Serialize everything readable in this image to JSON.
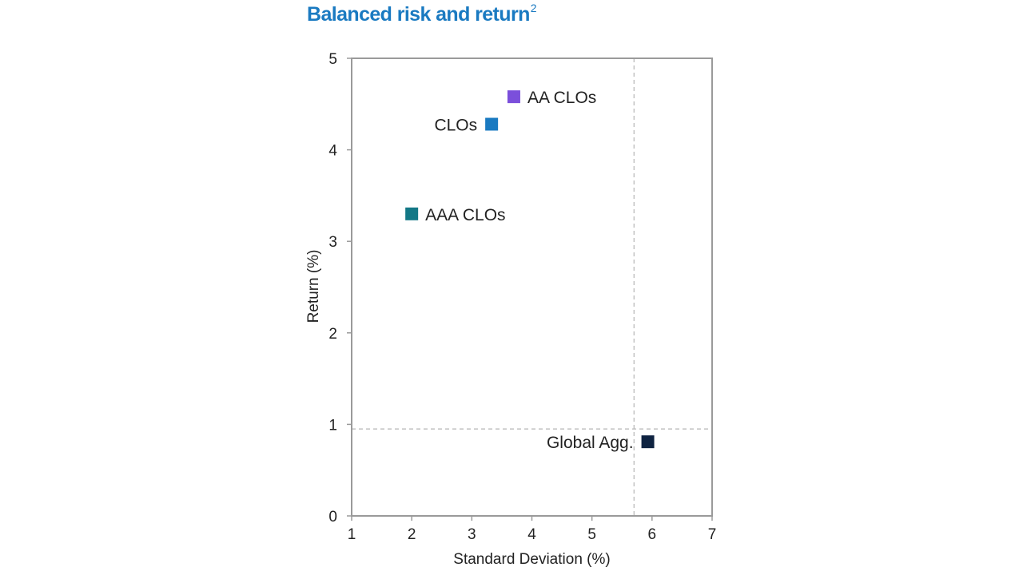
{
  "chart_data": {
    "type": "scatter",
    "title": "Balanced risk and return",
    "title_superscript": "2",
    "xlabel": "Standard Deviation (%)",
    "ylabel": "Return (%)",
    "xlim": [
      1,
      7
    ],
    "ylim": [
      0,
      5
    ],
    "xticks": [
      "1",
      "2",
      "3",
      "4",
      "5",
      "6",
      "7"
    ],
    "yticks": [
      "0",
      "1",
      "2",
      "3",
      "4",
      "5"
    ],
    "grid": false,
    "reference_lines": {
      "x": 5.7,
      "y": 0.95,
      "style": "dashed"
    },
    "points": [
      {
        "label": "AA CLOs",
        "x": 3.7,
        "y": 4.58,
        "color": "#7b4fdb",
        "label_side": "right"
      },
      {
        "label": "CLOs",
        "x": 3.33,
        "y": 4.28,
        "color": "#1a7ac1",
        "label_side": "left"
      },
      {
        "label": "AAA CLOs",
        "x": 2.0,
        "y": 3.3,
        "color": "#137886",
        "label_side": "right"
      },
      {
        "label": "Global Agg.",
        "x": 5.93,
        "y": 0.81,
        "color": "#0f2341",
        "label_side": "left"
      }
    ]
  }
}
